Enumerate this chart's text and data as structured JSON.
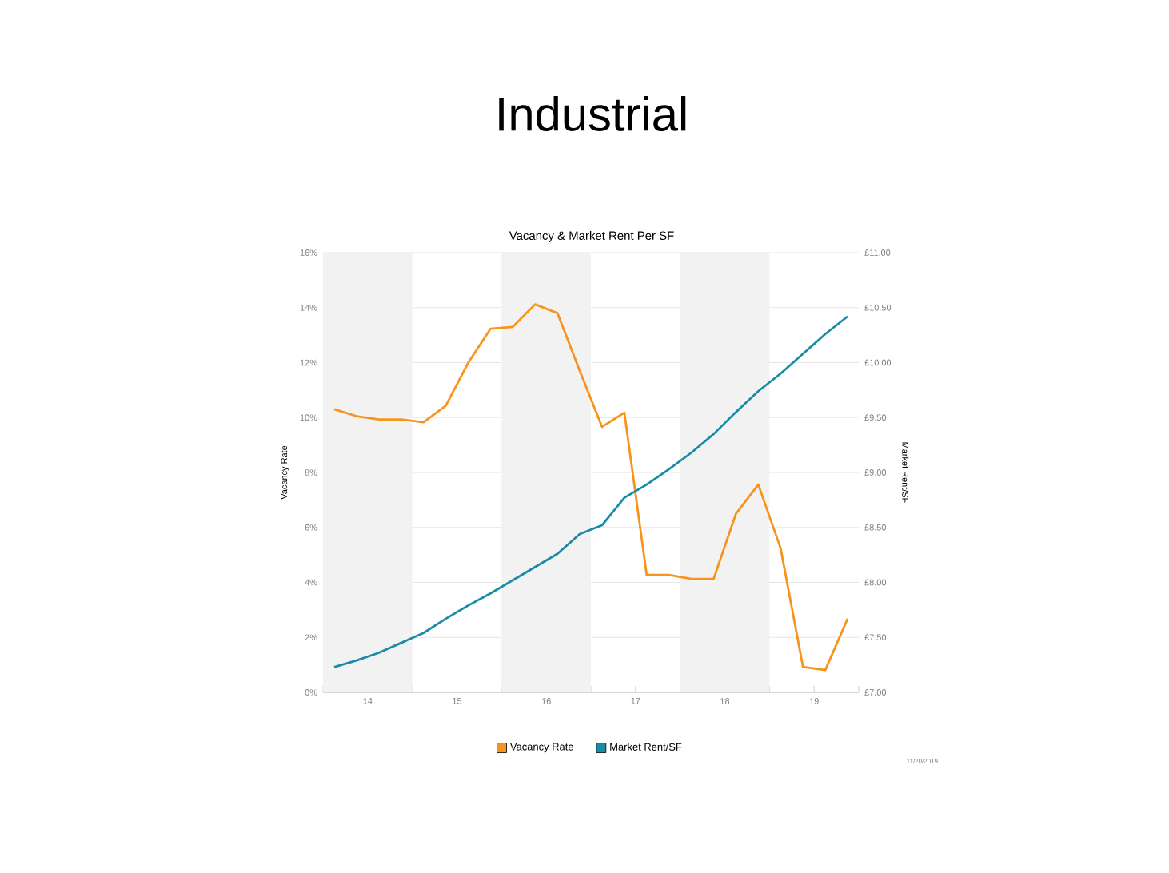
{
  "chart_data": {
    "type": "line",
    "title": "Industrial",
    "subtitle": "Vacancy & Market Rent Per SF",
    "ylabel": "Vacancy Rate",
    "y2label": "Market Rent/SF",
    "x": [
      14.125,
      14.375,
      14.625,
      14.875,
      15.125,
      15.375,
      15.625,
      15.875,
      16.125,
      16.375,
      16.625,
      16.875,
      17.125,
      17.375,
      17.625,
      17.875,
      18.125,
      18.375,
      18.625,
      18.875,
      19.125,
      19.375,
      19.625,
      19.875
    ],
    "series": [
      {
        "name": "Vacancy Rate",
        "color": "#f7941d",
        "values": [
          10.3,
          10.05,
          9.93,
          9.93,
          9.83,
          10.43,
          11.99,
          13.23,
          13.3,
          14.12,
          13.8,
          11.7,
          9.66,
          10.18,
          4.27,
          4.27,
          4.13,
          4.13,
          6.5,
          7.56,
          5.24,
          0.93,
          0.81,
          2.68
        ]
      },
      {
        "name": "Market Rent/SF",
        "color": "#1b8ca6",
        "axis": "y2",
        "values": [
          7.23,
          7.29,
          7.36,
          7.45,
          7.54,
          7.67,
          7.79,
          7.9,
          8.02,
          8.14,
          8.26,
          8.44,
          8.52,
          8.77,
          8.89,
          9.03,
          9.18,
          9.35,
          9.55,
          9.74,
          9.9,
          10.08,
          10.26,
          10.42
        ]
      }
    ],
    "xlim": [
      14,
      20
    ],
    "xticks": [
      {
        "value": 14,
        "label": null
      },
      {
        "value": 14.5,
        "label": "14"
      },
      {
        "value": 15,
        "label": null
      },
      {
        "value": 15.5,
        "label": "15"
      },
      {
        "value": 16,
        "label": null
      },
      {
        "value": 16.5,
        "label": "16"
      },
      {
        "value": 17,
        "label": null
      },
      {
        "value": 17.5,
        "label": "17"
      },
      {
        "value": 18,
        "label": null
      },
      {
        "value": 18.5,
        "label": "18"
      },
      {
        "value": 19,
        "label": null
      },
      {
        "value": 19.5,
        "label": "19"
      },
      {
        "value": 20,
        "label": null
      }
    ],
    "ylim": [
      0,
      16
    ],
    "yticks": [
      {
        "value": 0,
        "label": "0%"
      },
      {
        "value": 2,
        "label": "2%"
      },
      {
        "value": 4,
        "label": "4%"
      },
      {
        "value": 6,
        "label": "6%"
      },
      {
        "value": 8,
        "label": "8%"
      },
      {
        "value": 10,
        "label": "10%"
      },
      {
        "value": 12,
        "label": "12%"
      },
      {
        "value": 14,
        "label": "14%"
      },
      {
        "value": 16,
        "label": "16%"
      }
    ],
    "y2lim": [
      7,
      11
    ],
    "y2ticks": [
      {
        "value": 7,
        "label": "£7.00"
      },
      {
        "value": 7.5,
        "label": "£7.50"
      },
      {
        "value": 8,
        "label": "£8.00"
      },
      {
        "value": 8.5,
        "label": "£8.50"
      },
      {
        "value": 9,
        "label": "£9.00"
      },
      {
        "value": 9.5,
        "label": "£9.50"
      },
      {
        "value": 10,
        "label": "£10.00"
      },
      {
        "value": 10.5,
        "label": "£10.50"
      },
      {
        "value": 11,
        "label": "£11.00"
      }
    ],
    "bands": [
      {
        "axis": "x",
        "from": 14,
        "to": 15,
        "color": "#f2f2f2"
      },
      {
        "axis": "x",
        "from": 16,
        "to": 17,
        "color": "#f2f2f2"
      },
      {
        "axis": "x",
        "from": 18,
        "to": 19,
        "color": "#f2f2f2"
      }
    ],
    "grid": "y",
    "legend": "bottom",
    "marker": "none",
    "line_style": "solid",
    "annotations": [
      "11/20/2019"
    ]
  }
}
